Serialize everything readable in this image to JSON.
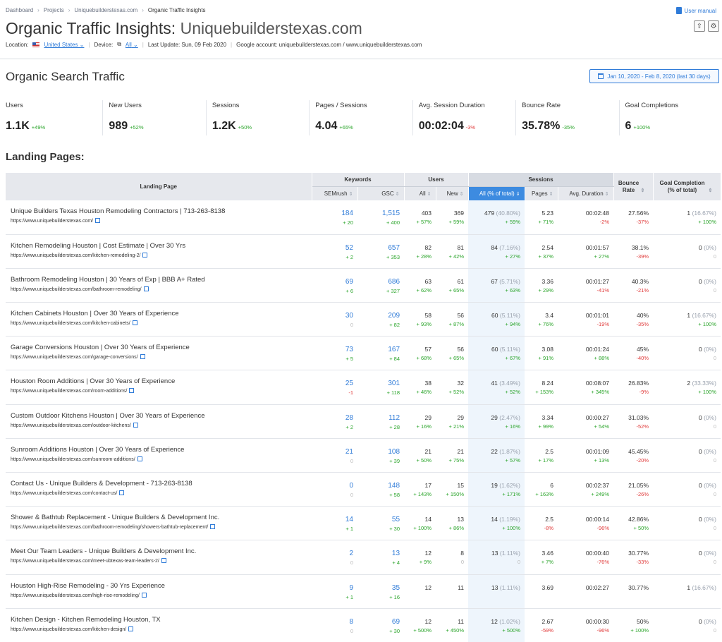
{
  "breadcrumb": [
    "Dashboard",
    "Projects",
    "Uniquebuilderstexas.com",
    "Organic Traffic Insights"
  ],
  "user_manual": "User manual",
  "title": "Organic Traffic Insights:",
  "title_domain": "Uniquebuilderstexas.com",
  "meta": {
    "location_label": "Location:",
    "location_value": "United States",
    "device_label": "Device:",
    "device_value": "All",
    "last_update": "Last Update: Sun, 09 Feb 2020",
    "google_account": "Google account: uniquebuilderstexas.com / www.uniquebuilderstexas.com"
  },
  "section_title": "Organic Search Traffic",
  "date_range": "Jan 10, 2020 - Feb 8, 2020 (last 30 days)",
  "metrics": [
    {
      "label": "Users",
      "value": "1.1K",
      "delta": "+49%",
      "dir": "up"
    },
    {
      "label": "New Users",
      "value": "989",
      "delta": "+52%",
      "dir": "up"
    },
    {
      "label": "Sessions",
      "value": "1.2K",
      "delta": "+50%",
      "dir": "up"
    },
    {
      "label": "Pages / Sessions",
      "value": "4.04",
      "delta": "+65%",
      "dir": "up"
    },
    {
      "label": "Avg. Session Duration",
      "value": "00:02:04",
      "delta": "-3%",
      "dir": "down"
    },
    {
      "label": "Bounce Rate",
      "value": "35.78%",
      "delta": "-35%",
      "dir": "up"
    },
    {
      "label": "Goal Completions",
      "value": "6",
      "delta": "+100%",
      "dir": "up"
    }
  ],
  "landing_pages_title": "Landing Pages:",
  "table": {
    "h_landing": "Landing Page",
    "h_keywords": "Keywords",
    "h_users": "Users",
    "h_sessions": "Sessions",
    "h_bounce": "Bounce Rate",
    "h_goal": "Goal Completion (% of total)",
    "h_semrush": "SEMrush",
    "h_gsc": "GSC",
    "h_all": "All",
    "h_new": "New",
    "h_all_total": "All (% of total)",
    "h_pages": "Pages",
    "h_avgdur": "Avg. Duration",
    "rows": [
      {
        "title": "Unique Builders Texas Houston Remodeling Contractors | 713-263-8138",
        "url": "https://www.uniquebuilderstexas.com/",
        "sem": "184",
        "sem_d": "+ 20",
        "gsc": "1,515",
        "gsc_d": "+ 400",
        "ua": "403",
        "ua_d": "+ 57%",
        "un": "369",
        "un_d": "+ 59%",
        "sa": "479",
        "sa_p": "(40.80%)",
        "sa_d": "+ 59%",
        "pg": "5.23",
        "pg_d": "+ 71%",
        "ad": "00:02:48",
        "ad_d": "-2%",
        "br": "27.56%",
        "br_d": "-37%",
        "gc": "1",
        "gc_p": "(16.67%)",
        "gc_d": "+ 100%"
      },
      {
        "title": "Kitchen Remodeling Houston | Cost Estimate | Over 30 Yrs",
        "url": "https://www.uniquebuilderstexas.com/kitchen-remodeling-2/",
        "sem": "52",
        "sem_d": "+ 2",
        "gsc": "657",
        "gsc_d": "+ 353",
        "ua": "82",
        "ua_d": "+ 28%",
        "un": "81",
        "un_d": "+ 42%",
        "sa": "84",
        "sa_p": "(7.16%)",
        "sa_d": "+ 27%",
        "pg": "2.54",
        "pg_d": "+ 37%",
        "ad": "00:01:57",
        "ad_d": "+ 27%",
        "br": "38.1%",
        "br_d": "-39%",
        "gc": "0",
        "gc_p": "(0%)",
        "gc_d": "0"
      },
      {
        "title": "Bathroom Remodeling Houston | 30 Years of Exp | BBB A+ Rated",
        "url": "https://www.uniquebuilderstexas.com/bathroom-remodeling/",
        "sem": "69",
        "sem_d": "+ 6",
        "gsc": "686",
        "gsc_d": "+ 327",
        "ua": "63",
        "ua_d": "+ 62%",
        "un": "61",
        "un_d": "+ 65%",
        "sa": "67",
        "sa_p": "(5.71%)",
        "sa_d": "+ 63%",
        "pg": "3.36",
        "pg_d": "+ 29%",
        "ad": "00:01:27",
        "ad_d": "-41%",
        "br": "40.3%",
        "br_d": "-21%",
        "gc": "0",
        "gc_p": "(0%)",
        "gc_d": "0"
      },
      {
        "title": "Kitchen Cabinets Houston | Over 30 Years of Experience",
        "url": "https://www.uniquebuilderstexas.com/kitchen-cabinets/",
        "sem": "30",
        "sem_d": "0",
        "gsc": "209",
        "gsc_d": "+ 82",
        "ua": "58",
        "ua_d": "+ 93%",
        "un": "56",
        "un_d": "+ 87%",
        "sa": "60",
        "sa_p": "(5.11%)",
        "sa_d": "+ 94%",
        "pg": "3.4",
        "pg_d": "+ 76%",
        "ad": "00:01:01",
        "ad_d": "-19%",
        "br": "40%",
        "br_d": "-35%",
        "gc": "1",
        "gc_p": "(16.67%)",
        "gc_d": "+ 100%"
      },
      {
        "title": "Garage Conversions Houston | Over 30 Years of Experience",
        "url": "https://www.uniquebuilderstexas.com/garage-conversions/",
        "sem": "73",
        "sem_d": "+ 5",
        "gsc": "167",
        "gsc_d": "+ 84",
        "ua": "57",
        "ua_d": "+ 68%",
        "un": "56",
        "un_d": "+ 65%",
        "sa": "60",
        "sa_p": "(5.11%)",
        "sa_d": "+ 67%",
        "pg": "3.08",
        "pg_d": "+ 91%",
        "ad": "00:01:24",
        "ad_d": "+ 88%",
        "br": "45%",
        "br_d": "-40%",
        "gc": "0",
        "gc_p": "(0%)",
        "gc_d": "0"
      },
      {
        "title": "Houston Room Additions | Over 30 Years of Experience",
        "url": "https://www.uniquebuilderstexas.com/room-additions/",
        "sem": "25",
        "sem_d": "-1",
        "gsc": "301",
        "gsc_d": "+ 118",
        "ua": "38",
        "ua_d": "+ 46%",
        "un": "32",
        "un_d": "+ 52%",
        "sa": "41",
        "sa_p": "(3.49%)",
        "sa_d": "+ 52%",
        "pg": "8.24",
        "pg_d": "+ 153%",
        "ad": "00:08:07",
        "ad_d": "+ 345%",
        "br": "26.83%",
        "br_d": "-9%",
        "gc": "2",
        "gc_p": "(33.33%)",
        "gc_d": "+ 100%"
      },
      {
        "title": "Custom Outdoor Kitchens Houston | Over 30 Years of Experience",
        "url": "https://www.uniquebuilderstexas.com/outdoor-kitchens/",
        "sem": "28",
        "sem_d": "+ 2",
        "gsc": "112",
        "gsc_d": "+ 28",
        "ua": "29",
        "ua_d": "+ 16%",
        "un": "29",
        "un_d": "+ 21%",
        "sa": "29",
        "sa_p": "(2.47%)",
        "sa_d": "+ 16%",
        "pg": "3.34",
        "pg_d": "+ 99%",
        "ad": "00:00:27",
        "ad_d": "+ 54%",
        "br": "31.03%",
        "br_d": "-52%",
        "gc": "0",
        "gc_p": "(0%)",
        "gc_d": "0"
      },
      {
        "title": "Sunroom Additions Houston | Over 30 Years of Experience",
        "url": "https://www.uniquebuilderstexas.com/sunroom-additions/",
        "sem": "21",
        "sem_d": "0",
        "gsc": "108",
        "gsc_d": "+ 39",
        "ua": "21",
        "ua_d": "+ 50%",
        "un": "21",
        "un_d": "+ 75%",
        "sa": "22",
        "sa_p": "(1.87%)",
        "sa_d": "+ 57%",
        "pg": "2.5",
        "pg_d": "+ 17%",
        "ad": "00:01:09",
        "ad_d": "+ 13%",
        "br": "45.45%",
        "br_d": "-20%",
        "gc": "0",
        "gc_p": "(0%)",
        "gc_d": "0"
      },
      {
        "title": "Contact Us - Unique Builders & Development - 713-263-8138",
        "url": "https://www.uniquebuilderstexas.com/contact-us/",
        "sem": "0",
        "sem_d": "0",
        "gsc": "148",
        "gsc_d": "+ 58",
        "ua": "17",
        "ua_d": "+ 143%",
        "un": "15",
        "un_d": "+ 150%",
        "sa": "19",
        "sa_p": "(1.62%)",
        "sa_d": "+ 171%",
        "pg": "6",
        "pg_d": "+ 163%",
        "ad": "00:02:37",
        "ad_d": "+ 249%",
        "br": "21.05%",
        "br_d": "-26%",
        "gc": "0",
        "gc_p": "(0%)",
        "gc_d": "0"
      },
      {
        "title": "Shower & Bathtub Replacement - Unique Builders & Development Inc.",
        "url": "https://www.uniquebuilderstexas.com/bathroom-remodeling/showers-bathtub-replacement/",
        "sem": "14",
        "sem_d": "+ 1",
        "gsc": "55",
        "gsc_d": "+ 30",
        "ua": "14",
        "ua_d": "+ 100%",
        "un": "13",
        "un_d": "+ 86%",
        "sa": "14",
        "sa_p": "(1.19%)",
        "sa_d": "+ 100%",
        "pg": "2.5",
        "pg_d": "-8%",
        "ad": "00:00:14",
        "ad_d": "-96%",
        "br": "42.86%",
        "br_d": "+ 50%",
        "gc": "0",
        "gc_p": "(0%)",
        "gc_d": "0"
      },
      {
        "title": "Meet Our Team Leaders - Unique Builders & Development Inc.",
        "url": "https://www.uniquebuilderstexas.com/meet-ubtexas-team-leaders-2/",
        "sem": "2",
        "sem_d": "0",
        "gsc": "13",
        "gsc_d": "+ 4",
        "ua": "12",
        "ua_d": "+ 9%",
        "un": "8",
        "un_d": "0",
        "sa": "13",
        "sa_p": "(1.11%)",
        "sa_d": "0",
        "pg": "3.46",
        "pg_d": "+ 7%",
        "ad": "00:00:40",
        "ad_d": "-76%",
        "br": "30.77%",
        "br_d": "-33%",
        "gc": "0",
        "gc_p": "(0%)",
        "gc_d": "0"
      },
      {
        "title": "Houston High-Rise Remodeling - 30 Yrs Experience",
        "url": "https://www.uniquebuilderstexas.com/high-rise-remodeling/",
        "sem": "9",
        "sem_d": "+ 1",
        "gsc": "35",
        "gsc_d": "+ 16",
        "ua": "12",
        "ua_d": "",
        "un": "11",
        "un_d": "",
        "sa": "13",
        "sa_p": "(1.11%)",
        "sa_d": "",
        "pg": "3.69",
        "pg_d": "",
        "ad": "00:02:27",
        "ad_d": "",
        "br": "30.77%",
        "br_d": "",
        "gc": "1",
        "gc_p": "(16.67%)",
        "gc_d": ""
      },
      {
        "title": "Kitchen Design - Kitchen Remodeling Houston, TX",
        "url": "https://www.uniquebuilderstexas.com/kitchen-design/",
        "sem": "8",
        "sem_d": "0",
        "gsc": "69",
        "gsc_d": "+ 30",
        "ua": "12",
        "ua_d": "+ 500%",
        "un": "11",
        "un_d": "+ 450%",
        "sa": "12",
        "sa_p": "(1.02%)",
        "sa_d": "+ 500%",
        "pg": "2.67",
        "pg_d": "-59%",
        "ad": "00:00:30",
        "ad_d": "-96%",
        "br": "50%",
        "br_d": "+ 100%",
        "gc": "0",
        "gc_p": "(0%)",
        "gc_d": "0"
      }
    ]
  }
}
